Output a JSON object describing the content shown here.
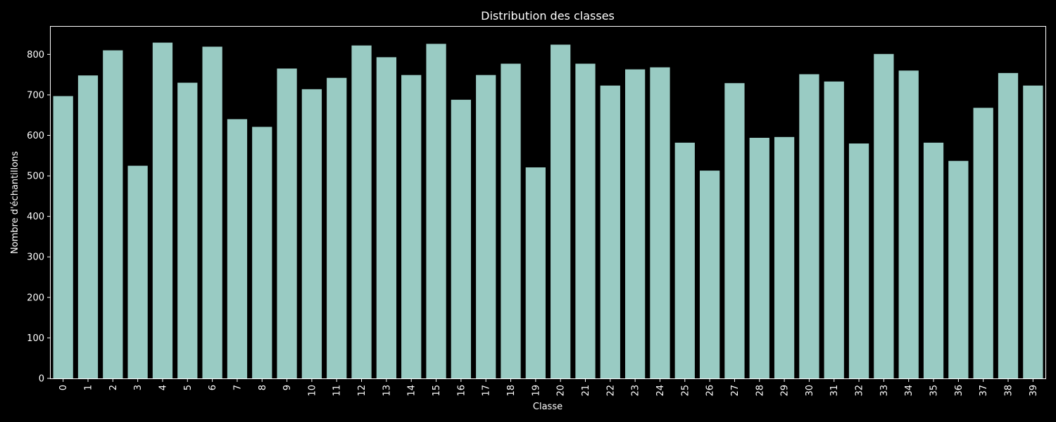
{
  "chart_data": {
    "type": "bar",
    "title": "Distribution des classes",
    "xlabel": "Classe",
    "ylabel": "Nombre d'échantillons",
    "categories": [
      "0",
      "1",
      "2",
      "3",
      "4",
      "5",
      "6",
      "7",
      "8",
      "9",
      "10",
      "11",
      "12",
      "13",
      "14",
      "15",
      "16",
      "17",
      "18",
      "19",
      "20",
      "21",
      "22",
      "23",
      "24",
      "25",
      "26",
      "27",
      "28",
      "29",
      "30",
      "31",
      "32",
      "33",
      "34",
      "35",
      "36",
      "37",
      "38",
      "39"
    ],
    "values": [
      697,
      748,
      810,
      525,
      829,
      730,
      819,
      640,
      621,
      765,
      714,
      742,
      822,
      793,
      749,
      826,
      688,
      749,
      777,
      521,
      824,
      777,
      723,
      763,
      768,
      582,
      513,
      729,
      594,
      596,
      751,
      733,
      580,
      801,
      760,
      582,
      537,
      668,
      754,
      723
    ],
    "ylim": [
      0,
      870
    ],
    "yticks": [
      0,
      100,
      200,
      300,
      400,
      500,
      600,
      700,
      800
    ],
    "grid": false,
    "legend": "none",
    "colors": {
      "bar": "#99cbc3",
      "background": "#000000",
      "axes": "#ffffff",
      "text": "#ffffff"
    }
  }
}
